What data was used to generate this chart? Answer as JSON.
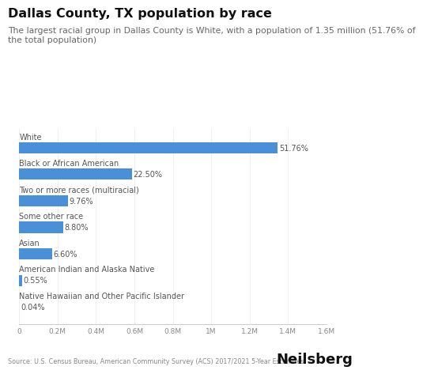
{
  "title": "Dallas County, TX population by race",
  "subtitle_line1": "The largest racial group in Dallas County is White, with a population of 1.35 million (51.76% of",
  "subtitle_line2": "the total population)",
  "categories": [
    "White",
    "Black or African American",
    "Two or more races (multiracial)",
    "Some other race",
    "Asian",
    "American Indian and Alaska Native",
    "Native Hawaiian and Other Pacific Islander"
  ],
  "values": [
    1347012,
    585750,
    254000,
    229000,
    171700,
    14300,
    1040
  ],
  "percentages": [
    "51.76%",
    "22.50%",
    "9.76%",
    "8.80%",
    "6.60%",
    "0.55%",
    "0.04%"
  ],
  "bar_color": "#4A90D9",
  "background_color": "#ffffff",
  "xlim": [
    0,
    1600000
  ],
  "xticks": [
    0,
    200000,
    400000,
    600000,
    800000,
    1000000,
    1200000,
    1400000,
    1600000
  ],
  "xtick_labels": [
    "0",
    "0.2M",
    "0.4M",
    "0.6M",
    "0.8M",
    "1M",
    "1.2M",
    "1.4M",
    "1.6M"
  ],
  "source": "Source: U.S. Census Bureau, American Community Survey (ACS) 2017/2021 5-Year Estimates",
  "brand": "Neilsberg",
  "title_fontsize": 11.5,
  "subtitle_fontsize": 7.8,
  "label_fontsize": 7.0,
  "pct_fontsize": 7.0,
  "tick_fontsize": 6.5,
  "source_fontsize": 5.8,
  "brand_fontsize": 13
}
